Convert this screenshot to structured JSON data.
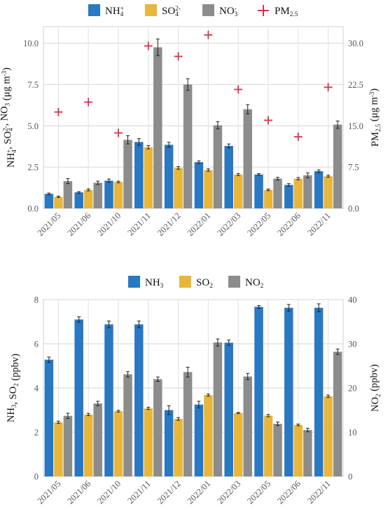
{
  "colors": {
    "nh": "#2878c2",
    "so": "#e8b73a",
    "no": "#8c8c8c",
    "pm": "#d9334a"
  },
  "chart_data": [
    {
      "type": "bar",
      "categories": [
        "2021/05",
        "2021/06",
        "2021/10",
        "2021/11",
        "2021/12",
        "2022/01",
        "2022/03",
        "2022/05",
        "2022/06",
        "2022/11"
      ],
      "legend": [
        {
          "base": "NH",
          "sub": "4",
          "sup": "+"
        },
        {
          "base": "SO",
          "sub": "4",
          "sup": "2-"
        },
        {
          "base": "NO",
          "sub": "3",
          "sup": "-"
        },
        {
          "base": "PM",
          "sub": "2.5",
          "sup": ""
        }
      ],
      "series": [
        {
          "values": [
            0.88,
            0.97,
            1.68,
            4.02,
            3.85,
            2.8,
            3.78,
            2.05,
            1.42,
            2.25
          ],
          "errors": [
            0.05,
            0.05,
            0.1,
            0.2,
            0.15,
            0.08,
            0.12,
            0.05,
            0.08,
            0.08
          ]
        },
        {
          "values": [
            0.7,
            1.12,
            1.6,
            3.7,
            2.45,
            2.32,
            2.05,
            1.12,
            1.8,
            1.95
          ],
          "errors": [
            0.04,
            0.06,
            0.05,
            0.1,
            0.08,
            0.07,
            0.06,
            0.05,
            0.07,
            0.06
          ]
        },
        {
          "values": [
            1.65,
            1.55,
            4.15,
            9.75,
            7.5,
            5.03,
            6.0,
            1.8,
            2.0,
            5.07
          ],
          "errors": [
            0.15,
            0.1,
            0.25,
            0.5,
            0.35,
            0.22,
            0.28,
            0.08,
            0.15,
            0.22
          ]
        }
      ],
      "pm25": [
        17.5,
        19.3,
        13.7,
        29.5,
        27.6,
        31.5,
        21.6,
        16.0,
        13.0,
        22.0
      ],
      "yleft": {
        "label_parts": {
          "nh": {
            "base": "NH",
            "sub": "4",
            "sup": "+"
          },
          "so": {
            "base": "SO",
            "sub": "4",
            "sup": "2-"
          },
          "no": {
            "base": "NO",
            "sub": "3",
            "sup": ""
          },
          "unit_pre": " (μg m",
          "unit_sup": "-3",
          "unit_post": ")"
        },
        "ylim": [
          0,
          11
        ],
        "ticks": [
          "0.0",
          "2.5",
          "5.0",
          "7.5",
          "10.0"
        ],
        "tick_values": [
          0,
          2.5,
          5,
          7.5,
          10
        ]
      },
      "yright": {
        "label_parts": {
          "base": "PM",
          "sub": "2.5",
          "unit_pre": " (μg m",
          "unit_sup": "-3",
          "unit_post": ")"
        },
        "ylim": [
          0,
          33
        ],
        "ticks": [
          "0.0",
          "7.5",
          "15.0",
          "22.5",
          "30.0"
        ],
        "tick_values": [
          0,
          7.5,
          15,
          22.5,
          30
        ]
      },
      "grid": true
    },
    {
      "type": "bar",
      "categories": [
        "2021/05",
        "2021/06",
        "2021/10",
        "2021/11",
        "2021/12",
        "2022/01",
        "2022/03",
        "2022/05",
        "2022/06",
        "2022/11"
      ],
      "legend": [
        {
          "base": "NH",
          "sub": "3"
        },
        {
          "base": "SO",
          "sub": "2"
        },
        {
          "base": "NO",
          "sub": "2"
        }
      ],
      "series": [
        {
          "values": [
            5.28,
            7.1,
            6.88,
            6.88,
            3.0,
            3.25,
            6.05,
            7.67,
            7.63,
            7.63
          ],
          "errors": [
            0.12,
            0.12,
            0.15,
            0.15,
            0.2,
            0.15,
            0.12,
            0.06,
            0.15,
            0.18
          ]
        },
        {
          "values": [
            2.45,
            2.8,
            2.95,
            3.08,
            2.6,
            3.68,
            2.87,
            2.75,
            2.33,
            3.63
          ],
          "errors": [
            0.05,
            0.05,
            0.04,
            0.05,
            0.06,
            0.05,
            0.03,
            0.05,
            0.04,
            0.05
          ]
        },
        {
          "values": [
            13.7,
            16.5,
            23.1,
            22.0,
            23.6,
            30.3,
            22.6,
            11.9,
            10.5,
            28.2
          ],
          "errors": [
            0.6,
            0.5,
            0.6,
            0.5,
            1.1,
            0.8,
            0.7,
            0.4,
            0.4,
            0.6
          ]
        }
      ],
      "yleft": {
        "label_parts": {
          "a": {
            "base": "NH",
            "sub": "3"
          },
          "b": {
            "base": "SO",
            "sub": "2"
          },
          "unit": " (ppbv)"
        },
        "ylim": [
          0,
          8
        ],
        "ticks": [
          "0",
          "2",
          "4",
          "6",
          "8"
        ],
        "tick_values": [
          0,
          2,
          4,
          6,
          8
        ]
      },
      "yright": {
        "label_parts": {
          "base": "NO",
          "sub": "2",
          "unit": " (ppbv)"
        },
        "ylim": [
          0,
          40
        ],
        "ticks": [
          "0",
          "10",
          "20",
          "30",
          "40"
        ],
        "tick_values": [
          0,
          10,
          20,
          30,
          40
        ]
      },
      "grid": true
    }
  ]
}
